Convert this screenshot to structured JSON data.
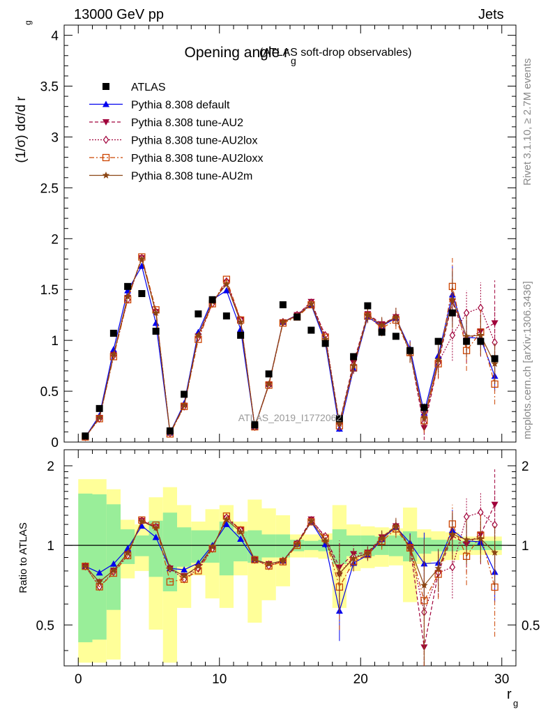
{
  "header": {
    "process": "13000 GeV pp",
    "category": "Jets"
  },
  "side": {
    "rivet": "Rivet 3.1.10, ≥ 2.7M events",
    "site": "mcplots.cern.ch [arXiv:1306.3436]"
  },
  "chart_data": {
    "type": "scatter",
    "title_main": "Opening angle r",
    "title_sub": "g",
    "title_suffix": "(ATLAS soft-drop observables)",
    "watermark": "ATLAS_2019_I1772062",
    "ylabel": "(1/σ) dσ/d r",
    "ylabel_sub": "g",
    "ratio_ylabel": "Ratio to ATLAS",
    "xlabel": "r",
    "xlabel_sub": "g",
    "xlim": [
      -1,
      31
    ],
    "ylim": [
      0,
      4.1
    ],
    "ratio_ylim": [
      0.35,
      2.3
    ],
    "x_ticks": [
      "0",
      "10",
      "20",
      "30"
    ],
    "y_ticks": [
      "0",
      "0.5",
      "1",
      "1.5",
      "2",
      "2.5",
      "3",
      "3.5",
      "4"
    ],
    "ratio_ticks": [
      "0.5",
      "1",
      "2"
    ],
    "x": [
      0.5,
      1.5,
      2.5,
      3.5,
      4.5,
      5.5,
      6.5,
      7.5,
      8.5,
      9.5,
      10.5,
      11.5,
      12.5,
      13.5,
      14.5,
      15.5,
      16.5,
      17.5,
      18.5,
      19.5,
      20.5,
      21.5,
      22.5,
      23.5,
      24.5,
      25.5,
      26.5,
      27.5,
      28.5,
      29.5
    ],
    "data": {
      "name": "ATLAS",
      "values": [
        0.06,
        0.33,
        1.07,
        1.53,
        1.46,
        1.09,
        0.11,
        0.47,
        1.26,
        1.4,
        1.24,
        1.05,
        0.17,
        0.67,
        1.35,
        1.23,
        1.1,
        0.97,
        0.23,
        0.84,
        1.34,
        1.08,
        1.04,
        0.9,
        0.34,
        0.99,
        1.27,
        0.99,
        0.99,
        0.82
      ]
    },
    "band_inner": [
      0.57,
      0.56,
      0.43,
      0.15,
      0.09,
      0.24,
      0.33,
      0.17,
      0.14,
      0.14,
      0.23,
      0.13,
      0.14,
      0.1,
      0.1,
      0.05,
      0.04,
      0.05,
      0.15,
      0.09,
      0.09,
      0.08,
      0.09,
      0.13,
      0.07,
      0.05,
      0.05,
      0.04,
      0.04,
      0.04
    ],
    "band_outer": [
      0.78,
      0.78,
      0.63,
      0.25,
      0.2,
      0.52,
      0.66,
      0.42,
      0.23,
      0.37,
      0.42,
      0.23,
      0.49,
      0.38,
      0.3,
      0.1,
      0.1,
      0.11,
      0.42,
      0.2,
      0.18,
      0.17,
      0.16,
      0.39,
      0.15,
      0.13,
      0.12,
      0.08,
      0.08,
      0.08
    ],
    "series": [
      {
        "name": "Pythia 8.308 default",
        "color": "#0000ee",
        "line": "solid",
        "marker": "triangle-up",
        "values": [
          0.05,
          0.26,
          0.91,
          1.49,
          1.73,
          1.17,
          0.09,
          0.38,
          1.08,
          1.4,
          1.49,
          1.11,
          0.15,
          0.57,
          1.18,
          1.25,
          1.35,
          0.98,
          0.13,
          0.72,
          1.23,
          1.14,
          1.22,
          0.92,
          0.29,
          0.85,
          1.45,
          1.03,
          1.02,
          0.65
        ],
        "err": [
          0,
          0,
          0,
          0,
          0,
          0,
          0,
          0,
          0,
          0,
          0,
          0,
          0,
          0,
          0.02,
          0.03,
          0.03,
          0.03,
          0.03,
          0.05,
          0.06,
          0.06,
          0.07,
          0.08,
          0.09,
          0.1,
          0.28,
          0.16,
          0.1,
          0.15
        ]
      },
      {
        "name": "Pythia 8.308 tune-AU2",
        "color": "#a0003a",
        "line": "dashed",
        "marker": "triangle-down",
        "values": [
          0.05,
          0.24,
          0.86,
          1.42,
          1.81,
          1.28,
          0.09,
          0.36,
          1.04,
          1.37,
          1.57,
          1.2,
          0.15,
          0.57,
          1.18,
          1.25,
          1.38,
          1.04,
          0.19,
          0.78,
          1.26,
          1.16,
          1.23,
          0.89,
          0.14,
          0.78,
          1.38,
          1.0,
          1.09,
          1.17
        ],
        "err": [
          0,
          0,
          0,
          0,
          0,
          0,
          0,
          0,
          0,
          0,
          0,
          0,
          0,
          0,
          0.02,
          0.03,
          0.03,
          0.03,
          0.05,
          0.06,
          0.07,
          0.08,
          0.09,
          0.1,
          0.12,
          0.15,
          0.3,
          0.22,
          0.25,
          0.42
        ]
      },
      {
        "name": "Pythia 8.308 tune-AU2lox",
        "color": "#a0003a",
        "line": "dotted",
        "marker": "diamond-open",
        "values": [
          0.05,
          0.23,
          0.85,
          1.4,
          1.81,
          1.28,
          0.09,
          0.35,
          1.03,
          1.36,
          1.58,
          1.2,
          0.15,
          0.56,
          1.18,
          1.25,
          1.37,
          1.05,
          0.18,
          0.76,
          1.25,
          1.14,
          1.23,
          0.88,
          0.19,
          0.78,
          1.05,
          1.27,
          1.32,
          0.98
        ],
        "err": [
          0,
          0,
          0,
          0,
          0,
          0,
          0,
          0,
          0,
          0,
          0,
          0,
          0,
          0,
          0.02,
          0.03,
          0.03,
          0.03,
          0.05,
          0.06,
          0.07,
          0.08,
          0.09,
          0.1,
          0.12,
          0.15,
          0.25,
          0.22,
          0.25,
          0.35
        ]
      },
      {
        "name": "Pythia 8.308 tune-AU2loxx",
        "color": "#cc4400",
        "line": "dashdot",
        "marker": "square-open",
        "values": [
          0.05,
          0.23,
          0.84,
          1.4,
          1.82,
          1.3,
          0.08,
          0.35,
          1.01,
          1.36,
          1.6,
          1.2,
          0.15,
          0.56,
          1.17,
          1.23,
          1.35,
          1.03,
          0.16,
          0.73,
          1.24,
          1.12,
          1.2,
          0.88,
          0.21,
          0.77,
          1.53,
          0.9,
          1.08,
          0.57
        ],
        "err": [
          0,
          0,
          0,
          0,
          0,
          0,
          0,
          0,
          0,
          0,
          0,
          0,
          0,
          0,
          0.02,
          0.03,
          0.03,
          0.03,
          0.05,
          0.06,
          0.07,
          0.08,
          0.09,
          0.1,
          0.12,
          0.15,
          0.28,
          0.2,
          0.22,
          0.2
        ]
      },
      {
        "name": "Pythia 8.308 tune-AU2m",
        "color": "#8b4513",
        "line": "solid",
        "marker": "star",
        "values": [
          0.05,
          0.24,
          0.86,
          1.43,
          1.8,
          1.27,
          0.09,
          0.36,
          1.05,
          1.38,
          1.55,
          1.18,
          0.15,
          0.57,
          1.18,
          1.24,
          1.36,
          1.01,
          0.18,
          0.75,
          1.25,
          1.15,
          1.23,
          0.88,
          0.24,
          0.81,
          1.4,
          1.04,
          1.05,
          0.77
        ],
        "err": [
          0,
          0,
          0,
          0,
          0,
          0,
          0,
          0,
          0,
          0,
          0,
          0,
          0,
          0,
          0.02,
          0.03,
          0.03,
          0.03,
          0.05,
          0.06,
          0.07,
          0.08,
          0.09,
          0.1,
          0.12,
          0.15,
          0.28,
          0.2,
          0.2,
          0.2
        ]
      }
    ]
  }
}
